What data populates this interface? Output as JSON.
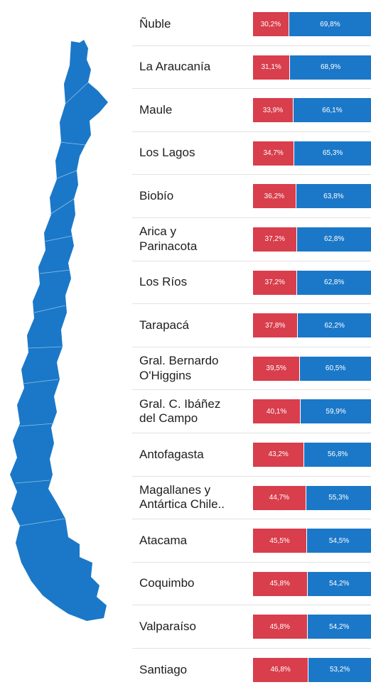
{
  "colors": {
    "red": "#d83e4c",
    "blue": "#1b78c8",
    "map": "#1b78c8"
  },
  "chart_data": {
    "type": "bar",
    "orientation": "horizontal",
    "stacked": true,
    "normalized": true,
    "categories": [
      "Ñuble",
      "La Araucanía",
      "Maule",
      "Los Lagos",
      "Biobío",
      "Arica y\nParinacota",
      "Los Ríos",
      "Tarapacá",
      "Gral. Bernardo\nO'Higgins",
      "Gral. C. Ibáñez\ndel Campo",
      "Antofagasta",
      "Magallanes y\nAntártica Chile..",
      "Atacama",
      "Coquimbo",
      "Valparaíso",
      "Santiago"
    ],
    "series": [
      {
        "color": "#d83e4c",
        "values": [
          30.2,
          31.1,
          33.9,
          34.7,
          36.2,
          37.2,
          37.2,
          37.8,
          39.5,
          40.1,
          43.2,
          44.7,
          45.5,
          45.8,
          45.8,
          46.8
        ],
        "labels": [
          "30,2%",
          "31,1%",
          "33,9%",
          "34,7%",
          "36,2%",
          "37,2%",
          "37,2%",
          "37,8%",
          "39,5%",
          "40,1%",
          "43,2%",
          "44,7%",
          "45,5%",
          "45,8%",
          "45,8%",
          "46,8%"
        ]
      },
      {
        "color": "#1b78c8",
        "values": [
          69.8,
          68.9,
          66.1,
          65.3,
          63.8,
          62.8,
          62.8,
          62.2,
          60.5,
          59.9,
          56.8,
          55.3,
          54.5,
          54.2,
          54.2,
          53.2
        ],
        "labels": [
          "69,8%",
          "68,9%",
          "66,1%",
          "65,3%",
          "63,8%",
          "62,8%",
          "62,8%",
          "62,2%",
          "60,5%",
          "59,9%",
          "56,8%",
          "55,3%",
          "54,5%",
          "54,2%",
          "54,2%",
          "53,2%"
        ]
      }
    ]
  }
}
